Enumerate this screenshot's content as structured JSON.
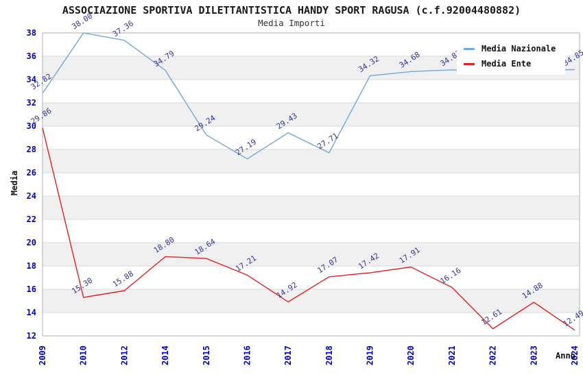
{
  "chart_data": {
    "type": "line",
    "title": "ASSOCIAZIONE SPORTIVA DILETTANTISTICA HANDY SPORT RAGUSA (c.f.92004480882)",
    "subtitle": "Media Importi",
    "xlabel": "Anno",
    "ylabel": "Media",
    "ylim": [
      12,
      38
    ],
    "ytick_step": 2,
    "grid": true,
    "legend_position": "top-right",
    "categories": [
      "2009",
      "2010",
      "2012",
      "2014",
      "2015",
      "2016",
      "2017",
      "2018",
      "2019",
      "2020",
      "2021",
      "2022",
      "2023",
      "2024"
    ],
    "series": [
      {
        "name": "Media Nazionale",
        "color": "#6fa8dc",
        "values": [
          32.82,
          38.0,
          37.36,
          34.79,
          29.24,
          27.19,
          29.43,
          27.71,
          34.32,
          34.68,
          34.83,
          34.8,
          34.8,
          34.85
        ],
        "labels": [
          "32.82",
          "38.00",
          "37.36",
          "34.79",
          "29.24",
          "27.19",
          "29.43",
          "27.71",
          "34.32",
          "34.68",
          "34.83",
          null,
          null,
          "34.85"
        ]
      },
      {
        "name": "Media Ente",
        "color": "#e62020",
        "values": [
          29.86,
          15.3,
          15.88,
          18.8,
          18.64,
          17.21,
          14.92,
          17.07,
          17.42,
          17.91,
          16.16,
          12.61,
          14.88,
          12.49
        ],
        "labels": [
          "29.86",
          "15.30",
          "15.88",
          "18.80",
          "18.64",
          "17.21",
          "14.92",
          "17.07",
          "17.42",
          "17.91",
          "16.16",
          "12.61",
          "14.88",
          "12.49"
        ]
      }
    ],
    "style": {
      "tick_label_color": "#0000cd",
      "data_label_color": "#333399",
      "band_color": "#f0f0f0",
      "grid_color": "#d9d9d9",
      "border_color": "#b3b3b3",
      "background": "#ffffff",
      "title_color": "#1a1a1a"
    }
  }
}
